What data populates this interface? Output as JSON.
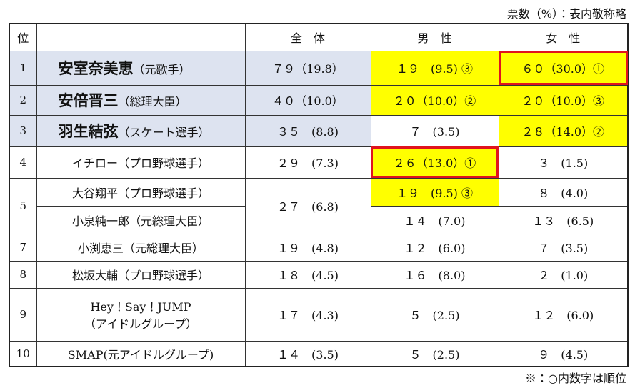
{
  "header": {
    "note": "票数（%）：表内敬称略"
  },
  "table": {
    "columns": [
      "位",
      "全　体",
      "男　性",
      "女　性"
    ],
    "rows": [
      {
        "rank": "1",
        "name": "安室奈美恵",
        "role": "（元歌手）",
        "total": "７９（19.8）",
        "male": "１９　(9.5) ③",
        "female": "６０（30.0）①"
      },
      {
        "rank": "2",
        "name": "安倍晋三",
        "role": "（総理大臣）",
        "total": "４０（10.0）",
        "male": "２０（10.0）②",
        "female": "２０（10.0）③"
      },
      {
        "rank": "3",
        "name": "羽生結弦",
        "role": "（スケート選手）",
        "total": "３５　(8.8)",
        "male": "７　(3.5)",
        "female": "２８（14.0）②"
      },
      {
        "rank": "4",
        "name": "イチロー",
        "role": "（プロ野球選手）",
        "total": "２９　(7.3)",
        "male": "２６（13.0）①",
        "female": "３　(1.5)"
      },
      {
        "rank": "5",
        "name": "大谷翔平",
        "role": "（プロ野球選手）",
        "total": "２７　(6.8)",
        "male": "１９　(9.5) ③",
        "female": "８　(4.0)"
      },
      {
        "name": "小泉純一郎",
        "role": "（元総理大臣）",
        "male": "１４　(7.0)",
        "female": "１３　(6.5)"
      },
      {
        "rank": "7",
        "name": "小渕恵三",
        "role": "（元総理大臣）",
        "total": "１９　(4.8)",
        "male": "１２　(6.0)",
        "female": "７　(3.5)"
      },
      {
        "rank": "8",
        "name": "松坂大輔",
        "role": "（プロ野球選手）",
        "total": "１８　(4.5)",
        "male": "１６　(8.0)",
        "female": "２　(1.0)"
      },
      {
        "rank": "9",
        "name": "Hey！Say！JUMP",
        "role": "（アイドルグループ）",
        "total": "１７　(4.3)",
        "male": "５　(2.5)",
        "female": "１２　(6.0)"
      },
      {
        "rank": "10",
        "name": "SMAP",
        "role": "(元アイドルグループ)",
        "total": "１４　(3.5)",
        "male": "５　(2.5)",
        "female": "９　(4.5)"
      }
    ]
  },
  "footer": {
    "note": "※：○内数字は順位"
  }
}
